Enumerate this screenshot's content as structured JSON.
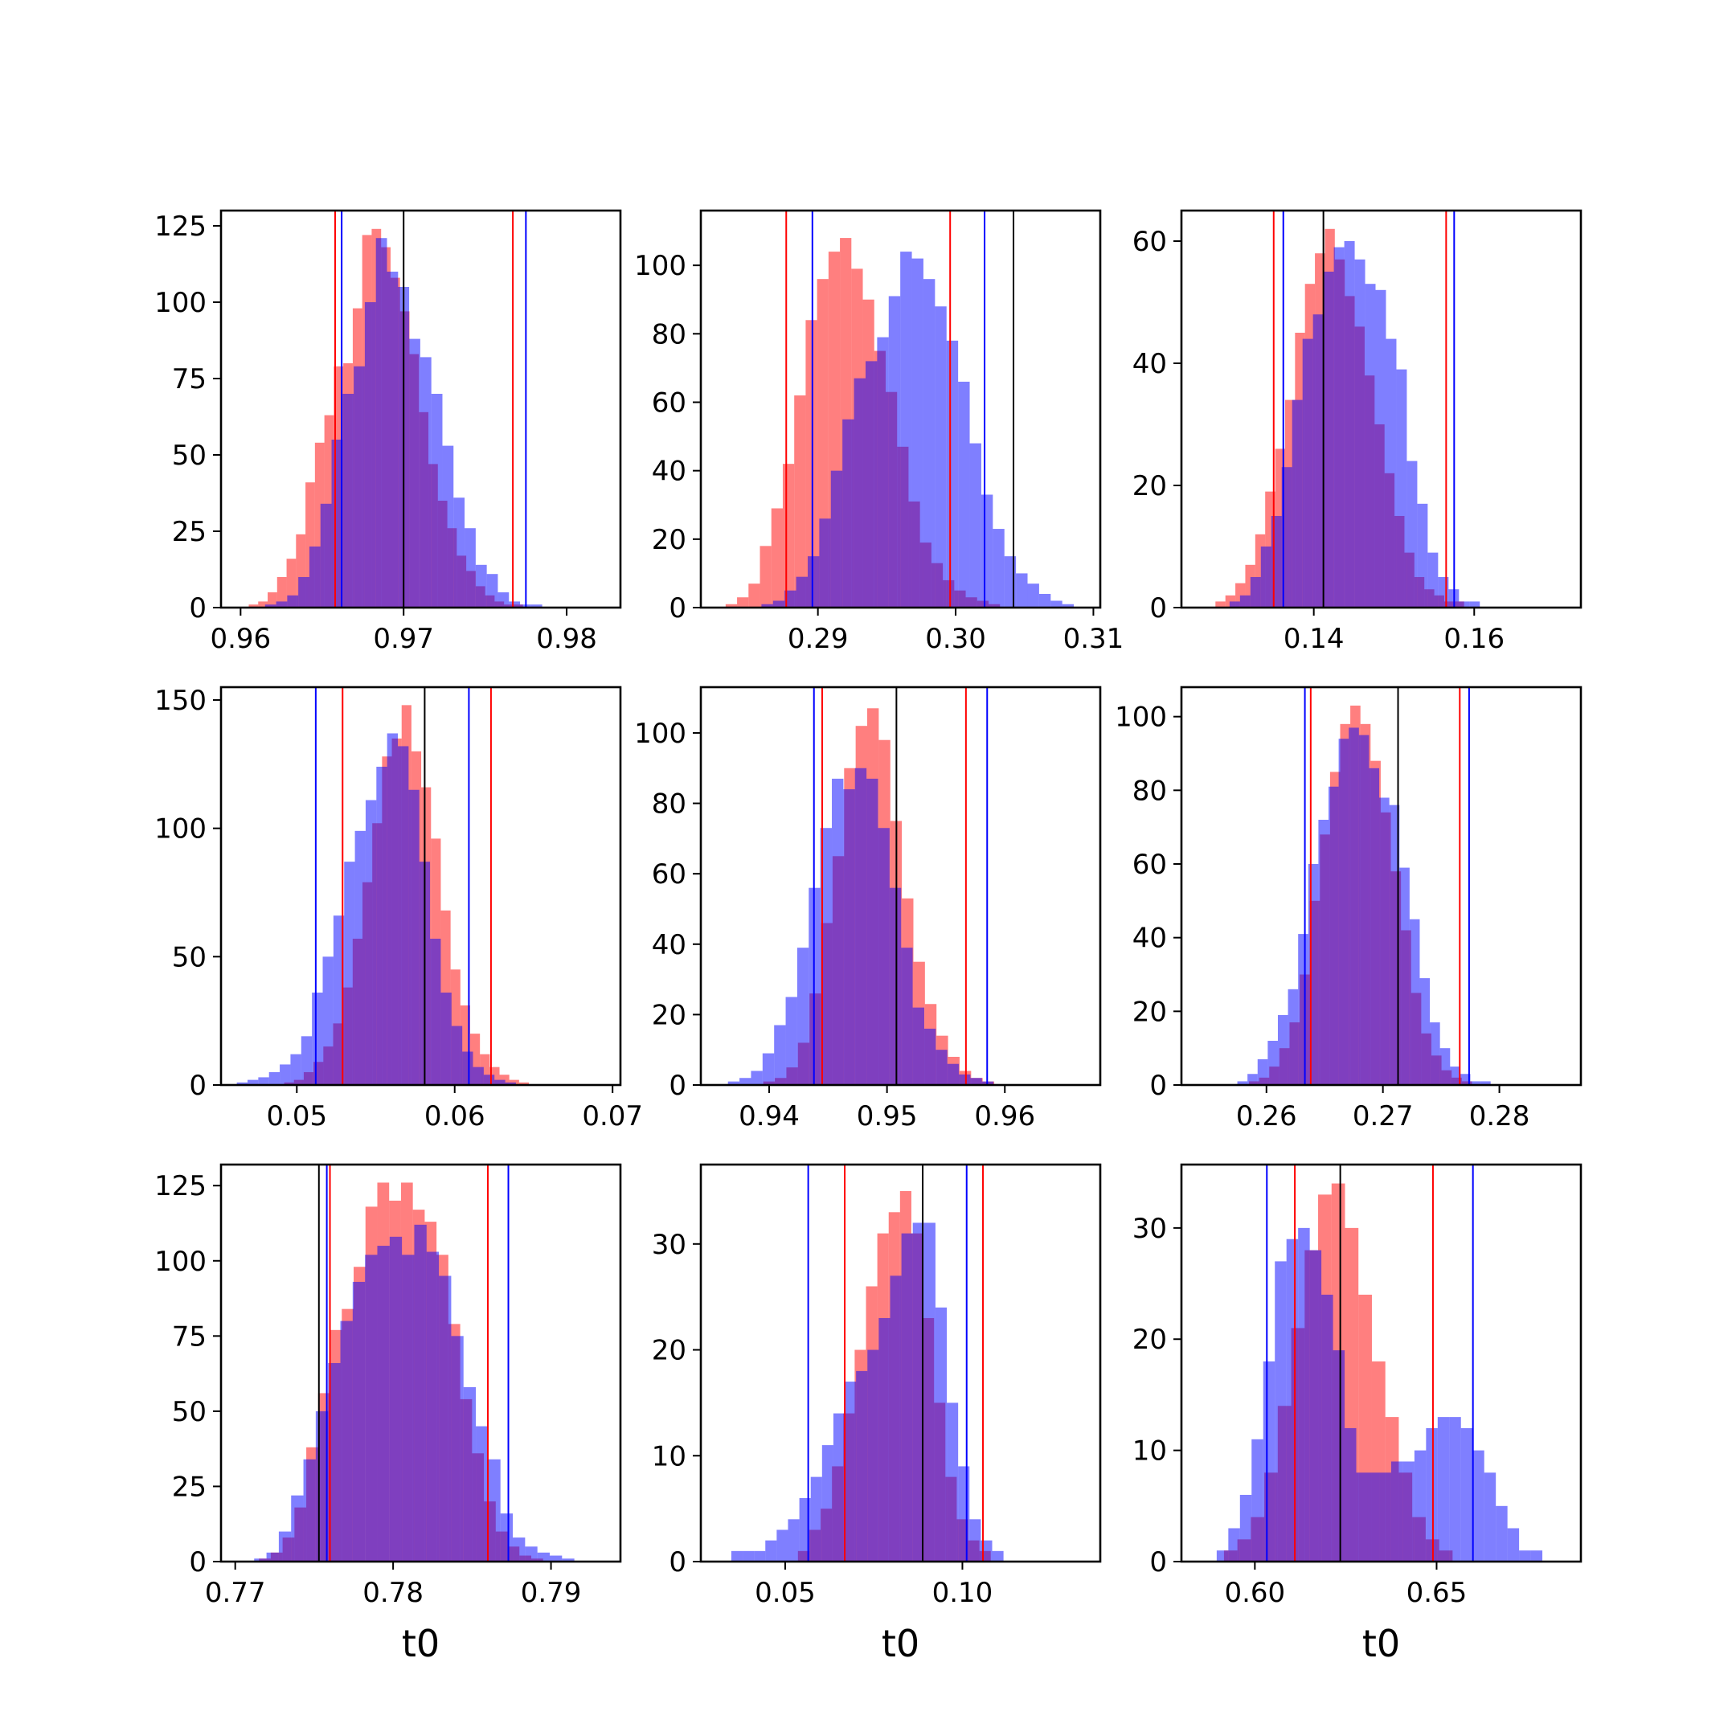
{
  "figure": {
    "colors": {
      "red": "#ff0000",
      "blue": "#0000ff",
      "black": "#000000",
      "red_fill": "rgba(255,0,0,0.5)",
      "blue_fill": "rgba(0,0,255,0.5)"
    }
  },
  "chart_data": [
    {
      "type": "histogram",
      "xlabel": "",
      "xlim": [
        0.9588,
        0.9833
      ],
      "ylim": [
        0,
        130
      ],
      "xticks": [
        0.96,
        0.97,
        0.98
      ],
      "xtick_labels": [
        "0.96",
        "0.97",
        "0.98"
      ],
      "yticks": [
        0,
        25,
        50,
        75,
        100,
        125
      ],
      "ytick_labels": [
        "0",
        "25",
        "50",
        "75",
        "100",
        "125"
      ],
      "series": [
        {
          "color": "red",
          "bin_start": 0.9605,
          "bin_width": 0.00058,
          "counts": [
            1,
            2,
            5,
            10,
            16,
            24,
            41,
            54,
            63,
            79,
            80,
            98,
            122,
            124,
            118,
            108,
            97,
            83,
            64,
            47,
            35,
            26,
            17,
            12,
            7,
            4,
            2,
            1,
            1,
            0,
            0
          ]
        },
        {
          "color": "blue",
          "bin_start": 0.9615,
          "bin_width": 0.00068,
          "counts": [
            1,
            2,
            4,
            10,
            20,
            34,
            55,
            70,
            79,
            100,
            121,
            110,
            105,
            88,
            82,
            70,
            53,
            36,
            26,
            14,
            11,
            5,
            2,
            1,
            1
          ]
        }
      ],
      "vlines": [
        {
          "x": 0.9658,
          "color": "red"
        },
        {
          "x": 0.9767,
          "color": "red"
        },
        {
          "x": 0.9662,
          "color": "blue"
        },
        {
          "x": 0.9775,
          "color": "blue"
        },
        {
          "x": 0.97,
          "color": "black"
        }
      ]
    },
    {
      "type": "histogram",
      "xlabel": "",
      "xlim": [
        0.2815,
        0.3105
      ],
      "ylim": [
        0,
        116
      ],
      "xticks": [
        0.29,
        0.3,
        0.31
      ],
      "xtick_labels": [
        "0.29",
        "0.30",
        "0.31"
      ],
      "yticks": [
        0,
        20,
        40,
        60,
        80,
        100
      ],
      "ytick_labels": [
        "0",
        "20",
        "40",
        "60",
        "80",
        "100"
      ],
      "series": [
        {
          "color": "red",
          "bin_start": 0.2833,
          "bin_width": 0.00083,
          "counts": [
            1,
            3,
            7,
            18,
            29,
            42,
            62,
            84,
            96,
            104,
            108,
            99,
            90,
            75,
            63,
            47,
            31,
            19,
            13,
            8,
            5,
            3,
            2,
            1,
            0
          ]
        },
        {
          "color": "blue",
          "bin_start": 0.2859,
          "bin_width": 0.00084,
          "counts": [
            1,
            2,
            5,
            9,
            15,
            26,
            40,
            55,
            67,
            72,
            79,
            91,
            104,
            102,
            96,
            88,
            78,
            66,
            48,
            33,
            23,
            15,
            10,
            7,
            4,
            2,
            1
          ]
        }
      ],
      "vlines": [
        {
          "x": 0.2877,
          "color": "red"
        },
        {
          "x": 0.2996,
          "color": "red"
        },
        {
          "x": 0.2896,
          "color": "blue"
        },
        {
          "x": 0.3021,
          "color": "blue"
        },
        {
          "x": 0.3042,
          "color": "black"
        }
      ]
    },
    {
      "type": "histogram",
      "xlabel": "",
      "xlim": [
        0.1235,
        0.1733
      ],
      "ylim": [
        0,
        65
      ],
      "xticks": [
        0.14,
        0.16
      ],
      "xtick_labels": [
        "0.14",
        "0.16"
      ],
      "yticks": [
        0,
        20,
        40,
        60
      ],
      "ytick_labels": [
        "0",
        "20",
        "40",
        "60"
      ],
      "series": [
        {
          "color": "red",
          "bin_start": 0.1265,
          "bin_width": 0.00124,
          "counts": [
            0,
            1,
            2,
            4,
            7,
            12,
            19,
            26,
            34,
            45,
            53,
            58,
            62,
            57,
            51,
            46,
            38,
            30,
            22,
            15,
            9,
            5,
            3,
            2,
            1,
            1
          ]
        },
        {
          "color": "blue",
          "bin_start": 0.1295,
          "bin_width": 0.0013,
          "counts": [
            1,
            2,
            5,
            10,
            15,
            23,
            34,
            44,
            48,
            55,
            59,
            60,
            57,
            53,
            52,
            44,
            39,
            24,
            17,
            9,
            5,
            3,
            1,
            1
          ]
        }
      ],
      "vlines": [
        {
          "x": 0.135,
          "color": "red"
        },
        {
          "x": 0.1565,
          "color": "red"
        },
        {
          "x": 0.1362,
          "color": "blue"
        },
        {
          "x": 0.1575,
          "color": "blue"
        },
        {
          "x": 0.1412,
          "color": "black"
        }
      ]
    },
    {
      "type": "histogram",
      "xlabel": "",
      "xlim": [
        0.0452,
        0.0705
      ],
      "ylim": [
        0,
        155
      ],
      "xticks": [
        0.05,
        0.06,
        0.07
      ],
      "xtick_labels": [
        "0.05",
        "0.06",
        "0.07"
      ],
      "yticks": [
        0,
        50,
        100,
        150
      ],
      "ytick_labels": [
        "0",
        "50",
        "100",
        "150"
      ],
      "series": [
        {
          "color": "red",
          "bin_start": 0.0492,
          "bin_width": 0.00062,
          "counts": [
            1,
            2,
            5,
            9,
            15,
            24,
            38,
            57,
            79,
            102,
            128,
            135,
            148,
            130,
            116,
            96,
            68,
            45,
            31,
            20,
            12,
            7,
            4,
            2,
            1
          ]
        },
        {
          "color": "blue",
          "bin_start": 0.0462,
          "bin_width": 0.00068,
          "counts": [
            1,
            2,
            3,
            5,
            8,
            12,
            19,
            36,
            50,
            66,
            87,
            99,
            111,
            124,
            137,
            132,
            115,
            87,
            57,
            36,
            23,
            13,
            7,
            4,
            2,
            1
          ]
        }
      ],
      "vlines": [
        {
          "x": 0.0529,
          "color": "red"
        },
        {
          "x": 0.0623,
          "color": "red"
        },
        {
          "x": 0.0512,
          "color": "blue"
        },
        {
          "x": 0.0609,
          "color": "blue"
        },
        {
          "x": 0.0581,
          "color": "black"
        }
      ]
    },
    {
      "type": "histogram",
      "xlabel": "",
      "xlim": [
        0.9342,
        0.9681
      ],
      "ylim": [
        0,
        113
      ],
      "xticks": [
        0.94,
        0.95,
        0.96
      ],
      "xtick_labels": [
        "0.94",
        "0.95",
        "0.96"
      ],
      "yticks": [
        0,
        20,
        40,
        60,
        80,
        100
      ],
      "ytick_labels": [
        "0",
        "20",
        "40",
        "60",
        "80",
        "100"
      ],
      "series": [
        {
          "color": "red",
          "bin_start": 0.9395,
          "bin_width": 0.00098,
          "counts": [
            1,
            2,
            5,
            12,
            26,
            46,
            65,
            90,
            102,
            107,
            98,
            75,
            53,
            35,
            23,
            14,
            8,
            4,
            2,
            1
          ]
        },
        {
          "color": "blue",
          "bin_start": 0.9365,
          "bin_width": 0.00098,
          "counts": [
            1,
            2,
            4,
            9,
            17,
            25,
            39,
            56,
            73,
            87,
            84,
            90,
            87,
            73,
            56,
            39,
            22,
            16,
            10,
            6,
            3,
            2,
            1
          ]
        }
      ],
      "vlines": [
        {
          "x": 0.9445,
          "color": "red"
        },
        {
          "x": 0.9567,
          "color": "red"
        },
        {
          "x": 0.9438,
          "color": "blue"
        },
        {
          "x": 0.9585,
          "color": "blue"
        },
        {
          "x": 0.9508,
          "color": "black"
        }
      ]
    },
    {
      "type": "histogram",
      "xlabel": "",
      "xlim": [
        0.2527,
        0.287
      ],
      "ylim": [
        0,
        108
      ],
      "xticks": [
        0.26,
        0.27,
        0.28
      ],
      "xtick_labels": [
        "0.26",
        "0.27",
        "0.28"
      ],
      "yticks": [
        0,
        20,
        40,
        60,
        80,
        100
      ],
      "ytick_labels": [
        "0",
        "20",
        "40",
        "60",
        "80",
        "100"
      ],
      "series": [
        {
          "color": "red",
          "bin_start": 0.2585,
          "bin_width": 0.00087,
          "counts": [
            1,
            2,
            5,
            10,
            17,
            30,
            50,
            68,
            85,
            98,
            103,
            98,
            88,
            74,
            58,
            42,
            25,
            14,
            8,
            4,
            2,
            1
          ]
        },
        {
          "color": "blue",
          "bin_start": 0.2575,
          "bin_width": 0.00087,
          "counts": [
            1,
            3,
            7,
            12,
            19,
            26,
            41,
            60,
            72,
            81,
            94,
            97,
            95,
            86,
            78,
            76,
            59,
            45,
            29,
            17,
            10,
            5,
            3,
            1,
            1
          ]
        }
      ],
      "vlines": [
        {
          "x": 0.2638,
          "color": "red"
        },
        {
          "x": 0.2766,
          "color": "red"
        },
        {
          "x": 0.2633,
          "color": "blue"
        },
        {
          "x": 0.2774,
          "color": "blue"
        },
        {
          "x": 0.2713,
          "color": "black"
        }
      ]
    },
    {
      "type": "histogram",
      "xlabel": "t0",
      "xlim": [
        0.7691,
        0.7944
      ],
      "ylim": [
        0,
        132
      ],
      "xticks": [
        0.77,
        0.78,
        0.79
      ],
      "xtick_labels": [
        "0.77",
        "0.78",
        "0.79"
      ],
      "yticks": [
        0,
        25,
        50,
        75,
        100,
        125
      ],
      "ytick_labels": [
        "0",
        "25",
        "50",
        "75",
        "100",
        "125"
      ],
      "series": [
        {
          "color": "red",
          "bin_start": 0.7715,
          "bin_width": 0.00075,
          "counts": [
            1,
            3,
            8,
            18,
            38,
            56,
            77,
            84,
            98,
            118,
            126,
            120,
            126,
            117,
            113,
            102,
            79,
            54,
            36,
            20,
            10,
            5,
            2,
            1
          ]
        },
        {
          "color": "blue",
          "bin_start": 0.7712,
          "bin_width": 0.00078,
          "counts": [
            1,
            3,
            10,
            22,
            34,
            50,
            66,
            80,
            93,
            102,
            105,
            108,
            102,
            112,
            103,
            95,
            75,
            58,
            45,
            34,
            16,
            8,
            5,
            3,
            2,
            1
          ]
        }
      ],
      "vlines": [
        {
          "x": 0.776,
          "color": "red"
        },
        {
          "x": 0.786,
          "color": "red"
        },
        {
          "x": 0.7758,
          "color": "blue"
        },
        {
          "x": 0.7873,
          "color": "blue"
        },
        {
          "x": 0.7753,
          "color": "black"
        }
      ]
    },
    {
      "type": "histogram",
      "xlabel": "t0",
      "xlim": [
        0.0262,
        0.1389
      ],
      "ylim": [
        0,
        37.5
      ],
      "xticks": [
        0.05,
        0.1
      ],
      "xtick_labels": [
        "0.05",
        "0.10"
      ],
      "yticks": [
        0,
        10,
        20,
        30
      ],
      "ytick_labels": [
        "0",
        "10",
        "20",
        "30"
      ],
      "series": [
        {
          "color": "red",
          "bin_start": 0.0536,
          "bin_width": 0.0032,
          "counts": [
            1,
            3,
            5,
            9,
            14,
            20,
            26,
            31,
            33,
            35,
            31,
            23,
            15,
            8,
            4,
            2,
            1,
            0
          ]
        },
        {
          "color": "blue",
          "bin_start": 0.0348,
          "bin_width": 0.0032,
          "counts": [
            1,
            1,
            1,
            2,
            3,
            4,
            6,
            8,
            11,
            14,
            17,
            18,
            20,
            23,
            27,
            31,
            32,
            32,
            24,
            15,
            9,
            4,
            2,
            1,
            0
          ]
        }
      ],
      "vlines": [
        {
          "x": 0.0668,
          "color": "red"
        },
        {
          "x": 0.1058,
          "color": "red"
        },
        {
          "x": 0.0565,
          "color": "blue"
        },
        {
          "x": 0.1012,
          "color": "blue"
        },
        {
          "x": 0.0888,
          "color": "black"
        }
      ]
    },
    {
      "type": "histogram",
      "xlabel": "t0",
      "xlim": [
        0.5798,
        0.6897
      ],
      "ylim": [
        0,
        35.7
      ],
      "xticks": [
        0.6,
        0.65
      ],
      "xtick_labels": [
        "0.60",
        "0.65"
      ],
      "yticks": [
        0,
        10,
        20,
        30
      ],
      "ytick_labels": [
        "0",
        "10",
        "20",
        "30"
      ],
      "series": [
        {
          "color": "red",
          "bin_start": 0.5915,
          "bin_width": 0.0037,
          "counts": [
            1,
            2,
            4,
            8,
            14,
            21,
            28,
            33,
            34,
            30,
            24,
            18,
            13,
            8,
            4,
            2,
            1,
            0,
            0,
            0,
            0,
            0,
            0
          ]
        },
        {
          "color": "blue",
          "bin_start": 0.5895,
          "bin_width": 0.0032,
          "counts": [
            1,
            3,
            6,
            11,
            18,
            27,
            29,
            30,
            28,
            24,
            19,
            12,
            8,
            8,
            8,
            9,
            9,
            10,
            12,
            13,
            13,
            12,
            10,
            8,
            5,
            3,
            1,
            1,
            0
          ]
        }
      ],
      "vlines": [
        {
          "x": 0.611,
          "color": "red"
        },
        {
          "x": 0.649,
          "color": "red"
        },
        {
          "x": 0.6033,
          "color": "blue"
        },
        {
          "x": 0.66,
          "color": "blue"
        },
        {
          "x": 0.6235,
          "color": "black"
        }
      ]
    }
  ]
}
